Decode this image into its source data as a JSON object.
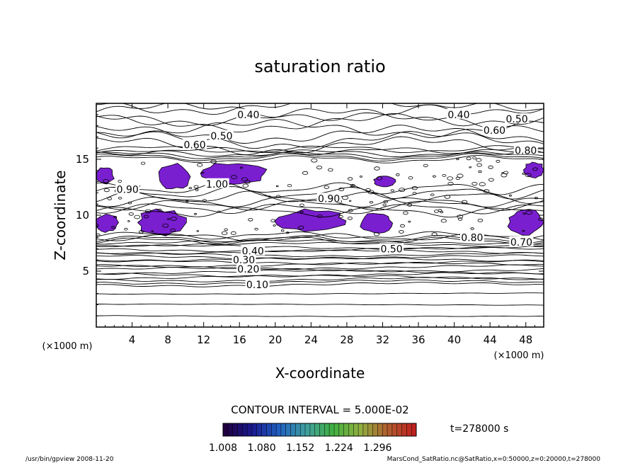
{
  "chart_data": {
    "type": "contour",
    "title": "saturation ratio",
    "xlabel": "X-coordinate",
    "ylabel": "Z-coordinate",
    "x_unit": "(×1000 m)",
    "z_unit": "(×1000 m)",
    "xlim": [
      0,
      50
    ],
    "ylim": [
      0,
      20
    ],
    "x_ticks": [
      "4",
      "8",
      "12",
      "16",
      "20",
      "24",
      "28",
      "32",
      "36",
      "40",
      "44",
      "48"
    ],
    "y_ticks": [
      "5",
      "10",
      "15"
    ],
    "contour_labels": [
      {
        "text": "0.40",
        "x": 17,
        "z": 19.0
      },
      {
        "text": "0.40",
        "x": 40.5,
        "z": 19.0
      },
      {
        "text": "0.50",
        "x": 47,
        "z": 18.6
      },
      {
        "text": "0.50",
        "x": 14,
        "z": 17.1
      },
      {
        "text": "0.60",
        "x": 44.5,
        "z": 17.6
      },
      {
        "text": "0.60",
        "x": 11,
        "z": 16.3
      },
      {
        "text": "0.80",
        "x": 48,
        "z": 15.8
      },
      {
        "text": "0.90",
        "x": 3.5,
        "z": 12.3
      },
      {
        "text": "0.90",
        "x": 26,
        "z": 11.5
      },
      {
        "text": "1.00",
        "x": 13.5,
        "z": 12.8
      },
      {
        "text": "0.80",
        "x": 42,
        "z": 8.0
      },
      {
        "text": "0.70",
        "x": 47.5,
        "z": 7.6
      },
      {
        "text": "0.50",
        "x": 33,
        "z": 7.0
      },
      {
        "text": "0.40",
        "x": 17.5,
        "z": 6.8
      },
      {
        "text": "0.30",
        "x": 16.5,
        "z": 6.0
      },
      {
        "text": "0.20",
        "x": 17,
        "z": 5.2
      },
      {
        "text": "0.10",
        "x": 18,
        "z": 3.8
      }
    ],
    "shaded_regions": [
      {
        "x": [
          0,
          2
        ],
        "z": [
          12.8,
          14.3
        ]
      },
      {
        "x": [
          7,
          10.5
        ],
        "z": [
          12.3,
          14.6
        ]
      },
      {
        "x": [
          11.5,
          19
        ],
        "z": [
          12.8,
          14.7
        ]
      },
      {
        "x": [
          31,
          33.5
        ],
        "z": [
          12.5,
          13.5
        ]
      },
      {
        "x": [
          47.8,
          50
        ],
        "z": [
          13.3,
          14.8
        ]
      },
      {
        "x": [
          0,
          2.5
        ],
        "z": [
          8.5,
          10.2
        ]
      },
      {
        "x": [
          4.5,
          10
        ],
        "z": [
          8.2,
          10.5
        ]
      },
      {
        "x": [
          20,
          28
        ],
        "z": [
          8.5,
          10.5
        ]
      },
      {
        "x": [
          29.5,
          33
        ],
        "z": [
          8.4,
          10.2
        ]
      },
      {
        "x": [
          46,
          50
        ],
        "z": [
          8.3,
          10.5
        ]
      }
    ],
    "contour_interval_text": "CONTOUR INTERVAL = 5.000E-02",
    "colorbar": {
      "range": [
        1.008,
        1.368
      ],
      "ticks": [
        "1.008",
        "1.080",
        "1.152",
        "1.224",
        "1.296"
      ],
      "colors": [
        "#200040",
        "#1a1a90",
        "#2060c0",
        "#40a0a0",
        "#40b040",
        "#90b040",
        "#b06030",
        "#c02020"
      ]
    },
    "time_label": "t=278000 s",
    "fill_color": "#7a1fd0"
  },
  "footer": {
    "left": "/usr/bin/gpview   2008-11-20",
    "right": "MarsCond_SatRatio.nc@SatRatio,x=0:50000,z=0:20000,t=278000"
  }
}
